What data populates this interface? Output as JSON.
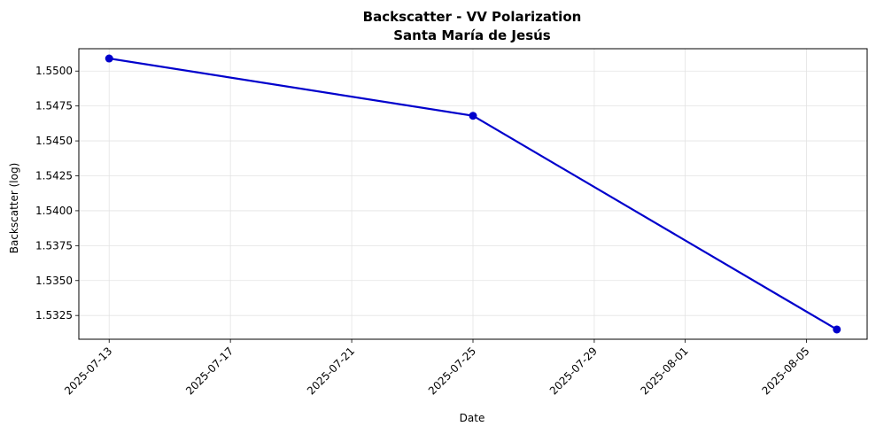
{
  "chart_data": {
    "type": "line",
    "title": "Backscatter - VV Polarization",
    "subtitle": "Santa María de Jesús",
    "xlabel": "Date",
    "ylabel": "Backscatter (log)",
    "x_ticks": [
      "2025-07-13",
      "2025-07-17",
      "2025-07-21",
      "2025-07-25",
      "2025-07-29",
      "2025-08-01",
      "2025-08-05"
    ],
    "y_ticks": [
      "1.5325",
      "1.5350",
      "1.5375",
      "1.5400",
      "1.5425",
      "1.5450",
      "1.5475",
      "1.5500"
    ],
    "xlim": [
      "2025-07-12",
      "2025-08-07"
    ],
    "ylim": [
      1.5308,
      1.5516
    ],
    "grid": true,
    "series": [
      {
        "color": "#0000cc",
        "x": [
          "2025-07-13",
          "2025-07-25",
          "2025-08-06"
        ],
        "values": [
          1.5509,
          1.5468,
          1.5315
        ]
      }
    ]
  }
}
